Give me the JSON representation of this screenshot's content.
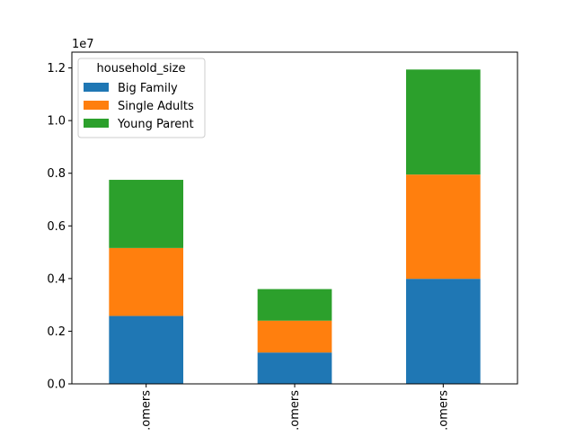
{
  "chart_data": {
    "type": "bar",
    "stacked": true,
    "categories": [
      "...omers",
      "...omers",
      "...omers"
    ],
    "series": [
      {
        "name": "Big Family",
        "values": [
          2580000,
          1190000,
          3990000
        ],
        "color": "#1f77b4"
      },
      {
        "name": "Single Adults",
        "values": [
          2580000,
          1210000,
          3960000
        ],
        "color": "#ff7f0e"
      },
      {
        "name": "Young Parent",
        "values": [
          2590000,
          1200000,
          3990000
        ],
        "color": "#2ca02c"
      }
    ],
    "scale_label": "1e7",
    "ylim": [
      0,
      12600000
    ],
    "yticks": [
      {
        "value": 0,
        "label": "0.0"
      },
      {
        "value": 2000000,
        "label": "0.2"
      },
      {
        "value": 4000000,
        "label": "0.4"
      },
      {
        "value": 6000000,
        "label": "0.6"
      },
      {
        "value": 8000000,
        "label": "0.8"
      },
      {
        "value": 10000000,
        "label": "1.0"
      },
      {
        "value": 12000000,
        "label": "1.2"
      }
    ],
    "legend": {
      "title": "household_size",
      "placement": "top-left"
    },
    "grid": false
  }
}
